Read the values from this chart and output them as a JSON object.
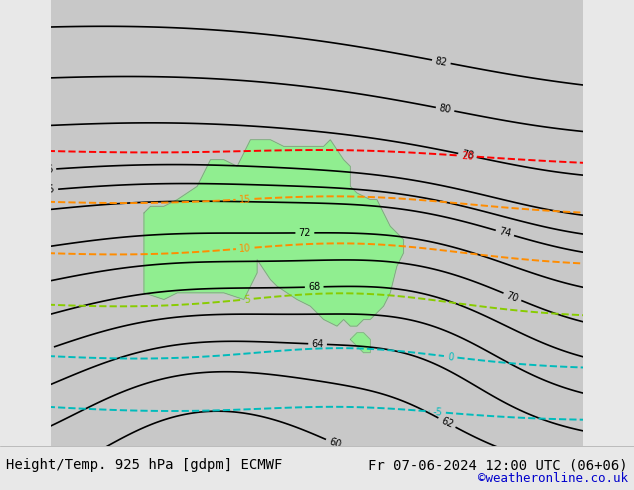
{
  "title_left": "Height/Temp. 925 hPa [gdpm] ECMWF",
  "title_right": "Fr 07-06-2024 12:00 UTC (06+06)",
  "credit": "©weatheronline.co.uk",
  "bg_color": "#c8c8c8",
  "land_color": "#90ee90",
  "ocean_color": "#c8c8c8",
  "bottom_bar_color": "#e8e8e8",
  "title_font_size": 10,
  "credit_color": "#0000cc",
  "figsize": [
    6.34,
    4.9
  ],
  "dpi": 100,
  "map_extent": [
    100,
    180,
    -57,
    10
  ]
}
